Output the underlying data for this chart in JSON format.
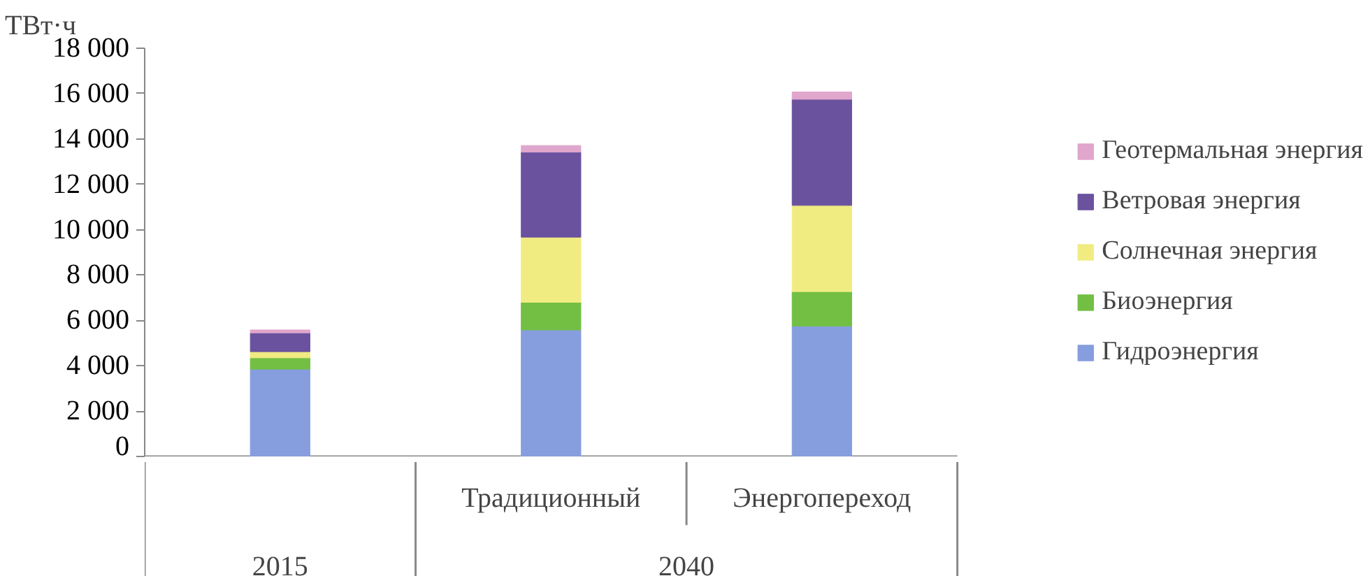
{
  "chart_data": {
    "type": "bar",
    "stacked": true,
    "ylabel": "ТВт·ч",
    "categories": [
      null,
      "Традиционный",
      "Энергопереход"
    ],
    "annotations": [
      "2015",
      "2040"
    ],
    "series": [
      {
        "name": "Гидроэнергия",
        "color": "#869ede",
        "values": [
          3850,
          5580,
          5750
        ]
      },
      {
        "name": "Биоэнергия",
        "color": "#72bf44",
        "values": [
          500,
          1220,
          1520
        ]
      },
      {
        "name": "Солнечная энергия",
        "color": "#f0ec82",
        "values": [
          270,
          2870,
          3800
        ]
      },
      {
        "name": "Ветровая энергия",
        "color": "#6a529f",
        "values": [
          830,
          3750,
          4680
        ]
      },
      {
        "name": "Геотермальная энергия",
        "color": "#e0a6cc",
        "values": [
          130,
          290,
          320
        ]
      }
    ],
    "ylim": [
      0,
      18000
    ],
    "yticks": [
      {
        "value": 0,
        "label": "0"
      },
      {
        "value": 2000,
        "label": "2 000"
      },
      {
        "value": 4000,
        "label": "4 000"
      },
      {
        "value": 6000,
        "label": "6 000"
      },
      {
        "value": 8000,
        "label": "8 000"
      },
      {
        "value": 10000,
        "label": "10 000"
      },
      {
        "value": 12000,
        "label": "12 000"
      },
      {
        "value": 14000,
        "label": "14 000"
      },
      {
        "value": 16000,
        "label": "16 000"
      },
      {
        "value": 18000,
        "label": "18 000"
      }
    ],
    "grid": false,
    "legend": "right"
  }
}
